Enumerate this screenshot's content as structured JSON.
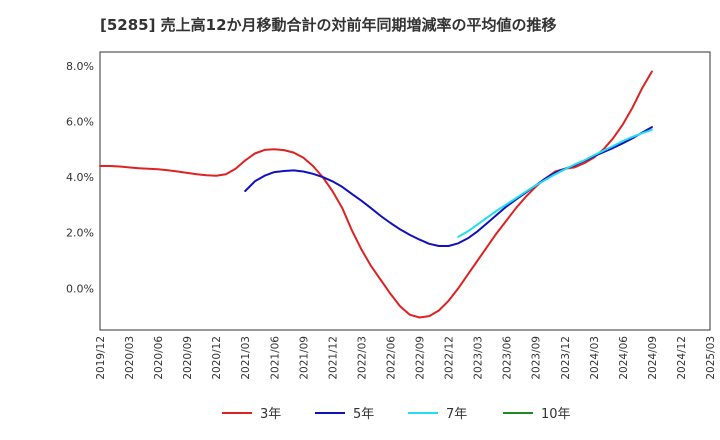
{
  "chart_data": {
    "type": "line",
    "title": "[5285]  売上高12か月移動合計の対前年同期増減率の平均値の推移",
    "xlabel": "",
    "ylabel": "",
    "ylim": [
      -1.5,
      8.5
    ],
    "yticks": [
      0.0,
      2.0,
      4.0,
      6.0,
      8.0
    ],
    "ytick_labels": [
      "0.0%",
      "2.0%",
      "4.0%",
      "6.0%",
      "8.0%"
    ],
    "x_categories": [
      "2019/12",
      "2020/03",
      "2020/06",
      "2020/09",
      "2020/12",
      "2021/03",
      "2021/06",
      "2021/09",
      "2021/12",
      "2022/03",
      "2022/06",
      "2022/09",
      "2022/12",
      "2023/03",
      "2023/06",
      "2023/09",
      "2023/12",
      "2024/03",
      "2024/06",
      "2024/09",
      "2024/12",
      "2025/03"
    ],
    "grid": true,
    "legend_position": "bottom",
    "series": [
      {
        "name": "3年",
        "color": "#dd2222",
        "start": "2019/12",
        "values": [
          4.4,
          4.4,
          4.38,
          4.35,
          4.32,
          4.3,
          4.28,
          4.25,
          4.2,
          4.15,
          4.1,
          4.07,
          4.05,
          4.1,
          4.3,
          4.6,
          4.85,
          4.98,
          5.0,
          4.97,
          4.88,
          4.7,
          4.4,
          4.0,
          3.5,
          2.9,
          2.1,
          1.4,
          0.8,
          0.3,
          -0.2,
          -0.65,
          -0.95,
          -1.05,
          -1.0,
          -0.8,
          -0.45,
          0.0,
          0.5,
          1.0,
          1.5,
          2.0,
          2.45,
          2.9,
          3.3,
          3.65,
          3.95,
          4.2,
          4.3,
          4.35,
          4.5,
          4.7,
          5.0,
          5.4,
          5.9,
          6.5,
          7.2,
          7.8
        ]
      },
      {
        "name": "5年",
        "color": "#1111bb",
        "start": "2021/03",
        "values": [
          3.5,
          3.85,
          4.05,
          4.18,
          4.22,
          4.24,
          4.2,
          4.12,
          4.0,
          3.85,
          3.65,
          3.4,
          3.15,
          2.88,
          2.6,
          2.35,
          2.12,
          1.92,
          1.75,
          1.6,
          1.52,
          1.52,
          1.62,
          1.8,
          2.05,
          2.35,
          2.65,
          2.95,
          3.2,
          3.45,
          3.7,
          3.95,
          4.15,
          4.3,
          4.42,
          4.58,
          4.75,
          4.9,
          5.05,
          5.22,
          5.4,
          5.6,
          5.8
        ]
      },
      {
        "name": "7年",
        "color": "#22ddee",
        "start": "2023/01",
        "values": [
          1.85,
          2.05,
          2.3,
          2.55,
          2.8,
          3.02,
          3.25,
          3.48,
          3.7,
          3.9,
          4.1,
          4.28,
          4.45,
          4.6,
          4.78,
          4.95,
          5.12,
          5.3,
          5.45,
          5.58,
          5.7
        ]
      },
      {
        "name": "10年",
        "color": "#228822",
        "start": "",
        "values": []
      }
    ]
  }
}
